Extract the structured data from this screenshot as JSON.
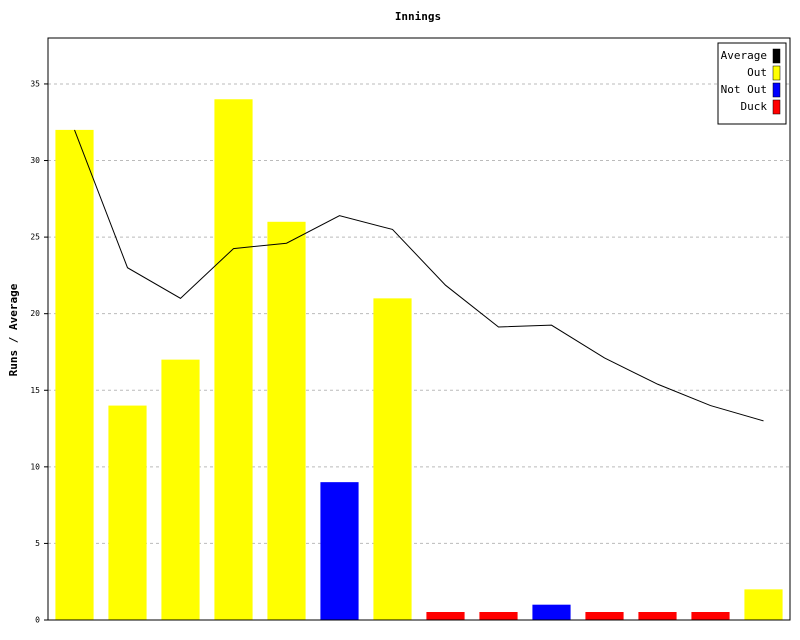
{
  "chart_data": {
    "type": "bar",
    "title": "Innings",
    "y_label": "Runs / Average",
    "categories": [
      null,
      null,
      null,
      null,
      null,
      null,
      null,
      null,
      null,
      null,
      null,
      null,
      null,
      null
    ],
    "series": [
      {
        "name": "Average",
        "color": "#000000",
        "type": "line",
        "values": [
          32,
          23,
          21,
          24.25,
          24.6,
          26.4,
          25.5,
          21.86,
          19.13,
          19.25,
          17.11,
          15.4,
          14,
          13
        ]
      },
      {
        "name": "Out",
        "color": "#ffff00",
        "values": [
          32,
          14,
          17,
          34,
          26,
          null,
          21,
          null,
          null,
          null,
          null,
          null,
          null,
          2
        ]
      },
      {
        "name": "Not Out",
        "color": "#0000ff",
        "values": [
          null,
          null,
          null,
          null,
          null,
          9,
          null,
          null,
          null,
          1,
          null,
          null,
          null,
          null
        ]
      },
      {
        "name": "Duck",
        "color": "#ff0000",
        "values": [
          null,
          null,
          null,
          null,
          null,
          null,
          null,
          0,
          0,
          null,
          0,
          0,
          0,
          null
        ]
      }
    ],
    "ylim": [
      0,
      38
    ],
    "yticks": [
      0,
      5,
      10,
      15,
      20,
      25,
      30,
      35
    ],
    "grid": true,
    "legend": "top-right"
  }
}
